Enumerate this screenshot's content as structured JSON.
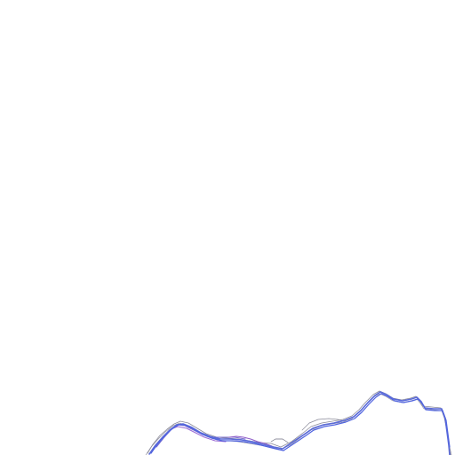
{
  "map": {
    "background_color": "#ffffff",
    "line_colors": {
      "primary": "#5a6ad8",
      "secondary": "#7b6fd0",
      "outline": "#8a8a99",
      "highlight": "#8e5bc8"
    }
  }
}
